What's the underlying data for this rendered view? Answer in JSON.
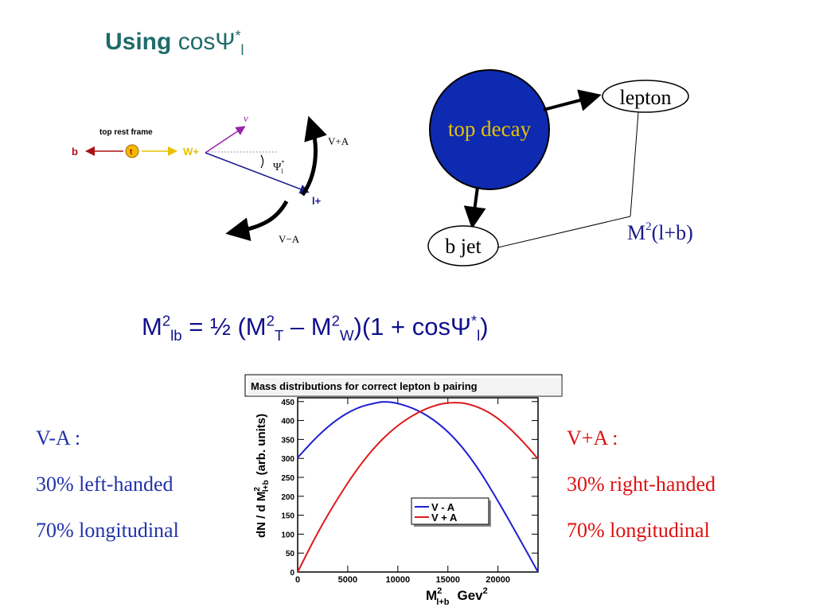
{
  "title": {
    "bold": "Using",
    "rest": "cosΨ",
    "sup": "*",
    "sub": "l"
  },
  "rest_frame_diagram": {
    "caption": "top rest frame",
    "b_label": "b",
    "t_label": "t",
    "w_label": "W+",
    "nu_label": "ν",
    "psi_label": "Ψ",
    "psi_sup": "*",
    "psi_sub": "l",
    "lepton_label": "l+",
    "va_plus": "V+A",
    "va_minus": "V−A"
  },
  "decay_diagram": {
    "top_decay": "top decay",
    "lepton": "lepton",
    "bjet": "b jet",
    "mass_label": "M",
    "mass_sup": "2",
    "mass_arg": "(l+b)"
  },
  "formula": {
    "m1": "M",
    "s1": "2",
    "sub1": "lb",
    "eq": " = ½ (M",
    "s2": "2",
    "sub2": "T",
    "minus": " – M",
    "s3": "2",
    "sub3": "W",
    "tail": ")(1 + cosΨ",
    "s4": "*",
    "sub4": "l",
    "close": ")"
  },
  "left_notes": {
    "line1": "V-A :",
    "line2": "30% left-handed",
    "line3": "70% longitudinal"
  },
  "right_notes": {
    "line1": "V+A :",
    "line2": "30% right-handed",
    "line3": "70% longitudinal"
  },
  "chart_data": {
    "type": "line",
    "title": "Mass distributions for correct lepton b pairing",
    "xlabel": "M",
    "xlabel_sup": "2",
    "xlabel_sub": "l+b",
    "xlabel_unit": "Gev",
    "xlabel_unit_sup": "2",
    "ylabel": "dN / d M",
    "ylabel_sup": "2",
    "ylabel_sub": "l+b",
    "ylabel_unit": "(arb. units)",
    "xlim": [
      0,
      24000
    ],
    "ylim": [
      0,
      460
    ],
    "x_ticks": [
      0,
      5000,
      10000,
      15000,
      20000
    ],
    "y_ticks": [
      0,
      50,
      100,
      150,
      200,
      250,
      300,
      350,
      400,
      450
    ],
    "legend_position": "center-right",
    "series": [
      {
        "name": "V -  A",
        "color": "#1f1fd0",
        "x": [
          0,
          2000,
          4000,
          6000,
          8000,
          8800,
          10000,
          12000,
          14000,
          16000,
          18000,
          20000,
          22000,
          24000
        ],
        "values": [
          302,
          360,
          405,
          435,
          448,
          450,
          446,
          428,
          395,
          345,
          275,
          188,
          95,
          0
        ]
      },
      {
        "name": "V + A",
        "color": "#dd1a1a",
        "x": [
          0,
          2000,
          4000,
          6000,
          8000,
          10000,
          12000,
          14000,
          15500,
          17000,
          19000,
          21000,
          23000,
          24000
        ],
        "values": [
          0,
          105,
          195,
          275,
          340,
          388,
          422,
          443,
          448,
          445,
          425,
          385,
          330,
          298
        ]
      }
    ]
  },
  "colors": {
    "title": "#1f6b6b",
    "formula": "#10108c",
    "left": "#2233aa",
    "right": "#dd1111",
    "blob": "#0d2ab0"
  }
}
